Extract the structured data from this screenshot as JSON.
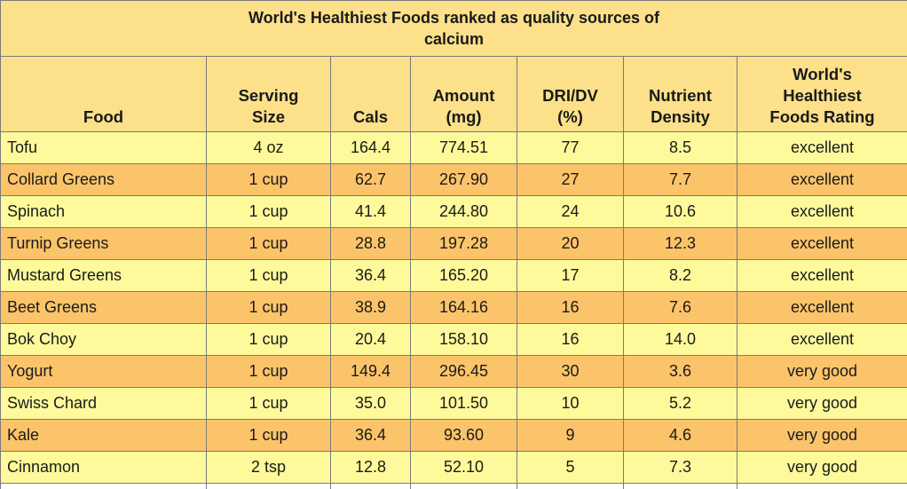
{
  "title": "World's Healthiest Foods ranked as quality sources of calcium",
  "columns": [
    "Food",
    "Serving Size",
    "Cals",
    "Amount (mg)",
    "DRI/DV (%)",
    "Nutrient Density",
    "World's Healthiest Foods Rating"
  ],
  "rows": [
    {
      "food": "Tofu",
      "serving": "4 oz",
      "cals": "164.4",
      "amount": "774.51",
      "dri": "77",
      "density": "8.5",
      "rating": "excellent"
    },
    {
      "food": "Collard Greens",
      "serving": "1 cup",
      "cals": "62.7",
      "amount": "267.90",
      "dri": "27",
      "density": "7.7",
      "rating": "excellent"
    },
    {
      "food": "Spinach",
      "serving": "1 cup",
      "cals": "41.4",
      "amount": "244.80",
      "dri": "24",
      "density": "10.6",
      "rating": "excellent"
    },
    {
      "food": "Turnip Greens",
      "serving": "1 cup",
      "cals": "28.8",
      "amount": "197.28",
      "dri": "20",
      "density": "12.3",
      "rating": "excellent"
    },
    {
      "food": "Mustard Greens",
      "serving": "1 cup",
      "cals": "36.4",
      "amount": "165.20",
      "dri": "17",
      "density": "8.2",
      "rating": "excellent"
    },
    {
      "food": "Beet Greens",
      "serving": "1 cup",
      "cals": "38.9",
      "amount": "164.16",
      "dri": "16",
      "density": "7.6",
      "rating": "excellent"
    },
    {
      "food": "Bok Choy",
      "serving": "1 cup",
      "cals": "20.4",
      "amount": "158.10",
      "dri": "16",
      "density": "14.0",
      "rating": "excellent"
    },
    {
      "food": "Yogurt",
      "serving": "1 cup",
      "cals": "149.4",
      "amount": "296.45",
      "dri": "30",
      "density": "3.6",
      "rating": "very good"
    },
    {
      "food": "Swiss Chard",
      "serving": "1 cup",
      "cals": "35.0",
      "amount": "101.50",
      "dri": "10",
      "density": "5.2",
      "rating": "very good"
    },
    {
      "food": "Kale",
      "serving": "1 cup",
      "cals": "36.4",
      "amount": "93.60",
      "dri": "9",
      "density": "4.6",
      "rating": "very good"
    },
    {
      "food": "Cinnamon",
      "serving": "2 tsp",
      "cals": "12.8",
      "amount": "52.10",
      "dri": "5",
      "density": "7.3",
      "rating": "very good"
    }
  ],
  "colors": {
    "header_bg": "#fce08a",
    "row_light": "#fefa9c",
    "row_dark": "#fcc46a",
    "border": "#7a7a7a"
  }
}
